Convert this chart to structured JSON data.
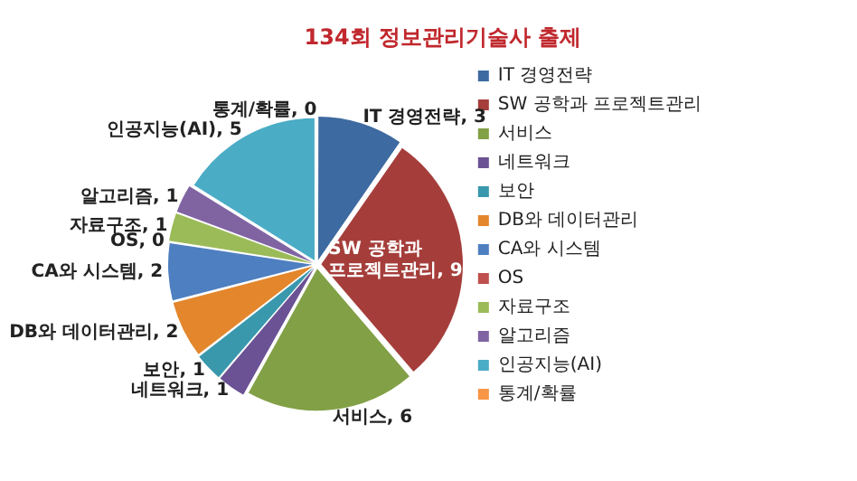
{
  "chart_data": {
    "type": "pie",
    "title": "134회 정보관리기술사 출제",
    "categories": [
      "IT 경영전략",
      "SW 공학과 프로젝트관리",
      "서비스",
      "네트워크",
      "보안",
      "DB와 데이터관리",
      "CA와 시스템",
      "OS",
      "자료구조",
      "알고리즘",
      "인공지능(AI)",
      "통계/확률"
    ],
    "values": [
      3,
      9,
      6,
      1,
      1,
      2,
      2,
      0,
      1,
      1,
      5,
      0
    ],
    "value_labels": [
      "IT 경영전략, 3",
      "SW 공학과 프로젝트관리, 9",
      "서비스, 6",
      "네트워크, 1",
      "보안, 1",
      "DB와 데이터관리, 2",
      "CA와 시스템, 2",
      "OS, 0",
      "자료구조, 1",
      "알고리즘, 1",
      "인공지능(AI), 5",
      "통계/확률, 0"
    ],
    "colors": [
      "#3d6aa0",
      "#a53e3b",
      "#82a046",
      "#6b5294",
      "#3a98ad",
      "#e3862c",
      "#4e7fc0",
      "#c0504d",
      "#9bbb59",
      "#8064a2",
      "#4bacc6",
      "#f79646"
    ],
    "legend": "right"
  }
}
